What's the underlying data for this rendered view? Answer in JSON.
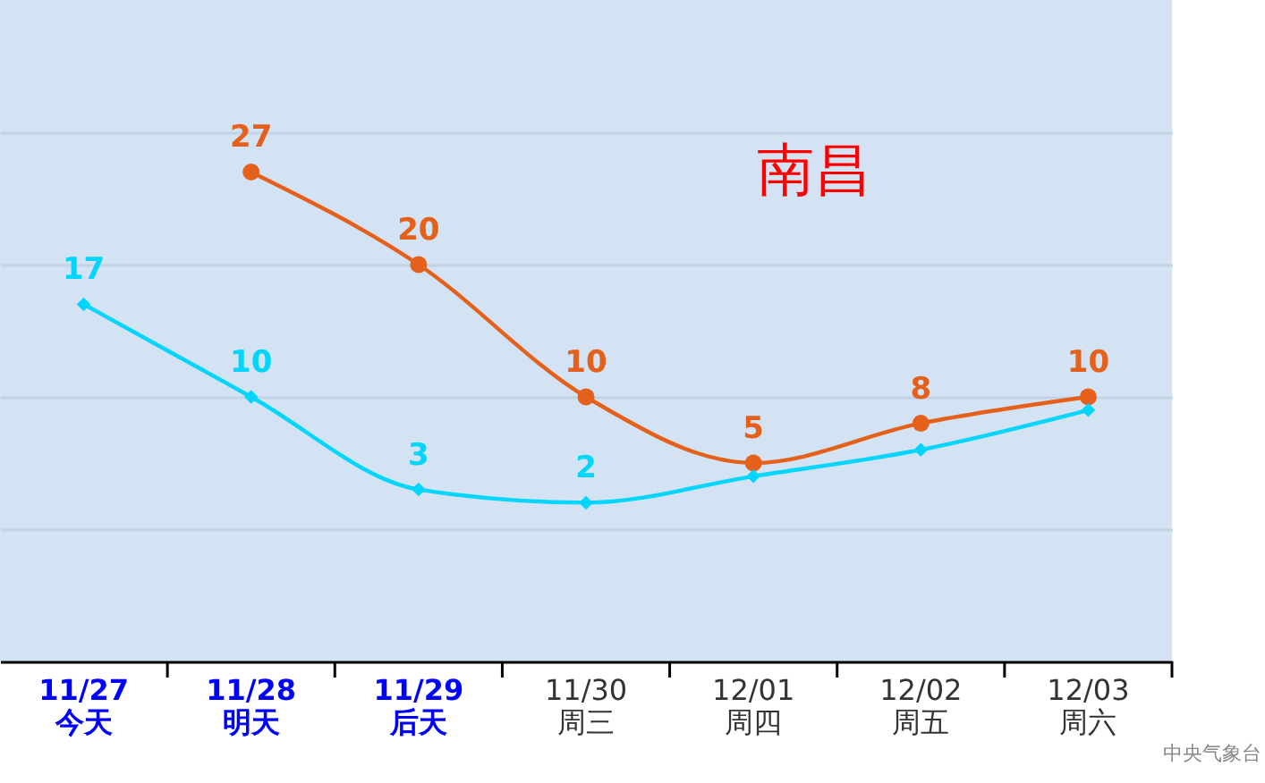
{
  "chart_data": {
    "type": "line",
    "title": "南昌",
    "categories": [
      "11/27\n今天",
      "11/28\n明天",
      "11/29\n后天",
      "11/30\n周三",
      "12/01\n周四",
      "12/02\n周五",
      "12/03\n周六"
    ],
    "series": [
      {
        "color": "#e5601b",
        "marker": "circle",
        "values": [
          null,
          27,
          20,
          10,
          5,
          8,
          10
        ],
        "value_labels": [
          null,
          "27",
          "20",
          "10",
          "5",
          "8",
          "10"
        ]
      },
      {
        "color": "#00d5fb",
        "marker": "diamond",
        "values": [
          17,
          10,
          3,
          2,
          4,
          6,
          9
        ],
        "value_labels": [
          "17",
          "10",
          "3",
          "2",
          null,
          null,
          null
        ]
      }
    ],
    "ylim": [
      -10,
      40
    ],
    "yticks": [
      {
        "value": 0,
        "label": null
      },
      {
        "value": 10,
        "label": null
      },
      {
        "value": 20,
        "label": null
      },
      {
        "value": 30,
        "label": null
      }
    ],
    "tick_labels": "x",
    "grid": "y",
    "line_style": "solid",
    "annotations": [
      "中央气象台"
    ]
  }
}
